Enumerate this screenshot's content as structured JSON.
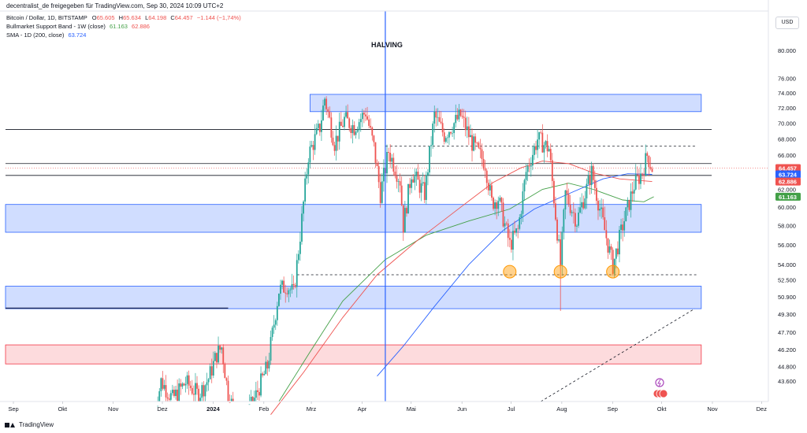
{
  "publisher": "decentralist_de freigegeben für TradingView.com, Sep 30, 2024 10:09 UTC+2",
  "legend": {
    "symbol": "Bitcoin / Dollar, 1D, BITSTAMP",
    "ohlc": [
      {
        "label": "O",
        "value": "65.605"
      },
      {
        "label": "H",
        "value": "65.634"
      },
      {
        "label": "L",
        "value": "64.198"
      },
      {
        "label": "C",
        "value": "64.457"
      }
    ],
    "change": "−1.144 (−1,74%)",
    "indicators": [
      {
        "name": "Bullmarket Support Band - 1W (close)",
        "values": [
          "61.163",
          "62.886"
        ]
      },
      {
        "name": "SMA - 1D (200, close)",
        "values": [
          "63.724"
        ]
      }
    ]
  },
  "currency": "USD",
  "footer": "TradingView",
  "colors": {
    "up": "#26a69a",
    "down": "#ef5350",
    "sma": "#2962ff",
    "band_green": "#43a047",
    "band_red": "#ef5350",
    "zone_blue": "#2962ff",
    "zone_red": "#f23645",
    "halving": "#2962ff",
    "circle": "#ff9800"
  },
  "chart_data": {
    "type": "candlestick",
    "x_axis": [
      "Sep",
      "Okt",
      "Nov",
      "Dez",
      "2024",
      "Feb",
      "Mrz",
      "Apr",
      "Mai",
      "Jun",
      "Jul",
      "Aug",
      "Sep",
      "Okt",
      "Nov",
      "Dez"
    ],
    "x_range": [
      "2023-09-01",
      "2024-12-10"
    ],
    "y_scale": "log",
    "y_range": [
      42000,
      86000
    ],
    "y_ticks": [
      "80.000",
      "76.000",
      "74.000",
      "72.000",
      "70.000",
      "68.000",
      "66.000",
      "62.000",
      "60.000",
      "58.000",
      "56.000",
      "54.000",
      "52.500",
      "50.900",
      "49.300",
      "47.700",
      "46.200",
      "44.800",
      "43.600"
    ],
    "price_labels": [
      {
        "value": 64457,
        "text": "64.457",
        "color": "#ef5350"
      },
      {
        "value": 63724,
        "text": "63.724",
        "color": "#2962ff"
      },
      {
        "value": 62886,
        "text": "62.886",
        "color": "#ef5350"
      },
      {
        "value": 61163,
        "text": "61.163",
        "color": "#43a047"
      }
    ],
    "annotations": {
      "halving": {
        "date": "2024-04-20",
        "label": "HALVING"
      },
      "zones": [
        {
          "from": "2024-03-05",
          "to": "2024-10-30",
          "low": 71500,
          "high": 73800,
          "color": "blue"
        },
        {
          "from": "2023-09-01",
          "to": "2024-10-30",
          "low": 57300,
          "high": 60300,
          "color": "blue"
        },
        {
          "from": "2023-09-01",
          "to": "2024-10-30",
          "low": 49800,
          "high": 51900,
          "color": "blue"
        },
        {
          "from": "2023-09-01",
          "to": "2024-10-30",
          "low": 45000,
          "high": 46600,
          "color": "red"
        }
      ],
      "solid_levels": [
        69200,
        65000,
        63600
      ],
      "dashed_levels": [
        {
          "value": 67100,
          "from": "2024-04-20",
          "to": "2024-10-27"
        },
        {
          "value": 53000,
          "from": "2024-02-26",
          "to": "2024-10-27"
        }
      ],
      "dark_segment": {
        "value": 49850,
        "from": "2023-09-01",
        "to": "2024-01-15"
      },
      "trendline": {
        "from": [
          "2024-07-24",
          42000
        ],
        "to": [
          "2024-10-26",
          49800
        ]
      },
      "circles": [
        {
          "date": "2024-07-05",
          "value": 53300
        },
        {
          "date": "2024-08-05",
          "value": 53300
        },
        {
          "date": "2024-09-06",
          "value": 53300
        }
      ]
    },
    "price_path": [
      [
        "2023-12-01",
        41000
      ],
      [
        "2023-12-05",
        43600
      ],
      [
        "2023-12-12",
        42200
      ],
      [
        "2023-12-20",
        43500
      ],
      [
        "2023-12-28",
        42500
      ],
      [
        "2024-01-03",
        43800
      ],
      [
        "2024-01-08",
        45800
      ],
      [
        "2024-01-11",
        46400
      ],
      [
        "2024-01-15",
        42500
      ],
      [
        "2024-01-23",
        40000
      ],
      [
        "2024-02-01",
        42500
      ],
      [
        "2024-02-08",
        44800
      ],
      [
        "2024-02-12",
        48500
      ],
      [
        "2024-02-15",
        51500
      ],
      [
        "2024-02-20",
        52000
      ],
      [
        "2024-02-24",
        51200
      ],
      [
        "2024-02-28",
        57000
      ],
      [
        "2024-03-04",
        66000
      ],
      [
        "2024-03-08",
        68000
      ],
      [
        "2024-03-11",
        69500
      ],
      [
        "2024-03-14",
        73300
      ],
      [
        "2024-03-20",
        67500
      ],
      [
        "2024-03-26",
        70500
      ],
      [
        "2024-04-01",
        69500
      ],
      [
        "2024-04-08",
        71500
      ],
      [
        "2024-04-13",
        67000
      ],
      [
        "2024-04-17",
        61500
      ],
      [
        "2024-04-22",
        66500
      ],
      [
        "2024-04-29",
        63000
      ],
      [
        "2024-05-01",
        58000
      ],
      [
        "2024-05-06",
        64000
      ],
      [
        "2024-05-14",
        61500
      ],
      [
        "2024-05-20",
        71000
      ],
      [
        "2024-05-26",
        68500
      ],
      [
        "2024-06-05",
        71000
      ],
      [
        "2024-06-12",
        67500
      ],
      [
        "2024-06-20",
        65000
      ],
      [
        "2024-06-24",
        60500
      ],
      [
        "2024-06-28",
        61000
      ],
      [
        "2024-07-05",
        56000
      ],
      [
        "2024-07-10",
        57500
      ],
      [
        "2024-07-15",
        64000
      ],
      [
        "2024-07-22",
        68000
      ],
      [
        "2024-07-29",
        66800
      ],
      [
        "2024-08-05",
        54000
      ],
      [
        "2024-08-08",
        61500
      ],
      [
        "2024-08-15",
        58500
      ],
      [
        "2024-08-24",
        64000
      ],
      [
        "2024-09-01",
        57500
      ],
      [
        "2024-09-06",
        53900
      ],
      [
        "2024-09-12",
        58000
      ],
      [
        "2024-09-19",
        62500
      ],
      [
        "2024-09-24",
        64000
      ],
      [
        "2024-09-27",
        66000
      ],
      [
        "2024-09-30",
        64457
      ]
    ],
    "sma_200": [
      [
        "2024-04-15",
        44000
      ],
      [
        "2024-05-01",
        46500
      ],
      [
        "2024-05-20",
        50000
      ],
      [
        "2024-06-10",
        54000
      ],
      [
        "2024-07-01",
        57500
      ],
      [
        "2024-07-20",
        59800
      ],
      [
        "2024-08-10",
        61500
      ],
      [
        "2024-08-31",
        63200
      ],
      [
        "2024-09-15",
        63800
      ],
      [
        "2024-09-30",
        63724
      ]
    ],
    "support_band_red": [
      [
        "2024-02-10",
        41000
      ],
      [
        "2024-03-01",
        44300
      ],
      [
        "2024-03-25",
        49000
      ],
      [
        "2024-04-15",
        53000
      ],
      [
        "2024-05-10",
        56500
      ],
      [
        "2024-06-05",
        60000
      ],
      [
        "2024-06-25",
        62800
      ],
      [
        "2024-07-12",
        64500
      ],
      [
        "2024-07-25",
        65300
      ],
      [
        "2024-08-10",
        65000
      ],
      [
        "2024-08-25",
        63900
      ],
      [
        "2024-09-10",
        63200
      ],
      [
        "2024-09-30",
        62886
      ]
    ],
    "support_band_green": [
      [
        "2024-02-15",
        42000
      ],
      [
        "2024-03-05",
        46000
      ],
      [
        "2024-03-25",
        50500
      ],
      [
        "2024-04-20",
        54500
      ],
      [
        "2024-05-15",
        57000
      ],
      [
        "2024-06-10",
        58500
      ],
      [
        "2024-07-05",
        59800
      ],
      [
        "2024-07-25",
        62000
      ],
      [
        "2024-08-10",
        62700
      ],
      [
        "2024-08-25",
        62000
      ],
      [
        "2024-09-12",
        60800
      ],
      [
        "2024-09-25",
        60600
      ],
      [
        "2024-10-01",
        61163
      ]
    ]
  }
}
